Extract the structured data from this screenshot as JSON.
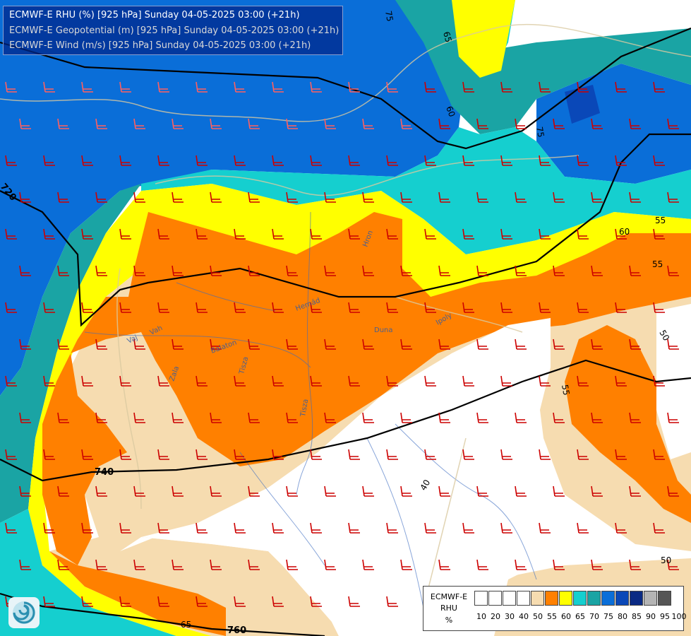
{
  "header": {
    "line1": "ECMWF-E RHU (%) [925 hPa] Sunday 04-05-2025 03:00 (+21h)",
    "line2": "ECMWF-E Geopotential (m) [925 hPa] Sunday 04-05-2025 03:00 (+21h)",
    "line3": "ECMWF-E Wind (m/s) [925 hPa] Sunday 04-05-2025 03:00 (+21h)"
  },
  "legend": {
    "model": "ECMWF-E",
    "param": "RHU",
    "unit": "%",
    "ticks": [
      "10",
      "20",
      "30",
      "40",
      "50",
      "55",
      "60",
      "65",
      "70",
      "75",
      "80",
      "85",
      "90",
      "95",
      "100"
    ],
    "colors": [
      "#ffffff",
      "#ffffff",
      "#ffffff",
      "#ffffff",
      "#f6dcb0",
      "#ff8000",
      "#ffff00",
      "#15cfcf",
      "#1aa4a4",
      "#0a6ed8",
      "#0a48b8",
      "#0a2a84",
      "#b4b4b4",
      "#555555"
    ]
  },
  "contour_labels": {
    "rhu": [
      "75",
      "65",
      "60",
      "75",
      "60",
      "55",
      "55",
      "50",
      "55",
      "40",
      "50",
      "65"
    ],
    "geopotential": [
      "720",
      "740",
      "760"
    ]
  },
  "rivers": [
    "Vah",
    "Hron",
    "Ipoly",
    "Hernád",
    "Tisza",
    "Zala",
    "Balaton",
    "Duna",
    "Vaj",
    "Tisza"
  ],
  "colors": {
    "rhu_50": "#f6dcb0",
    "rhu_55": "#ff8000",
    "rhu_60": "#ffff00",
    "rhu_65": "#15cfcf",
    "rhu_70": "#1aa4a4",
    "rhu_75": "#0a6ed8",
    "rhu_80": "#0a48b8",
    "rhu_85": "#0a2a84",
    "wind_barb": "#cc0000",
    "wind_barb_light": "#ff6060"
  }
}
